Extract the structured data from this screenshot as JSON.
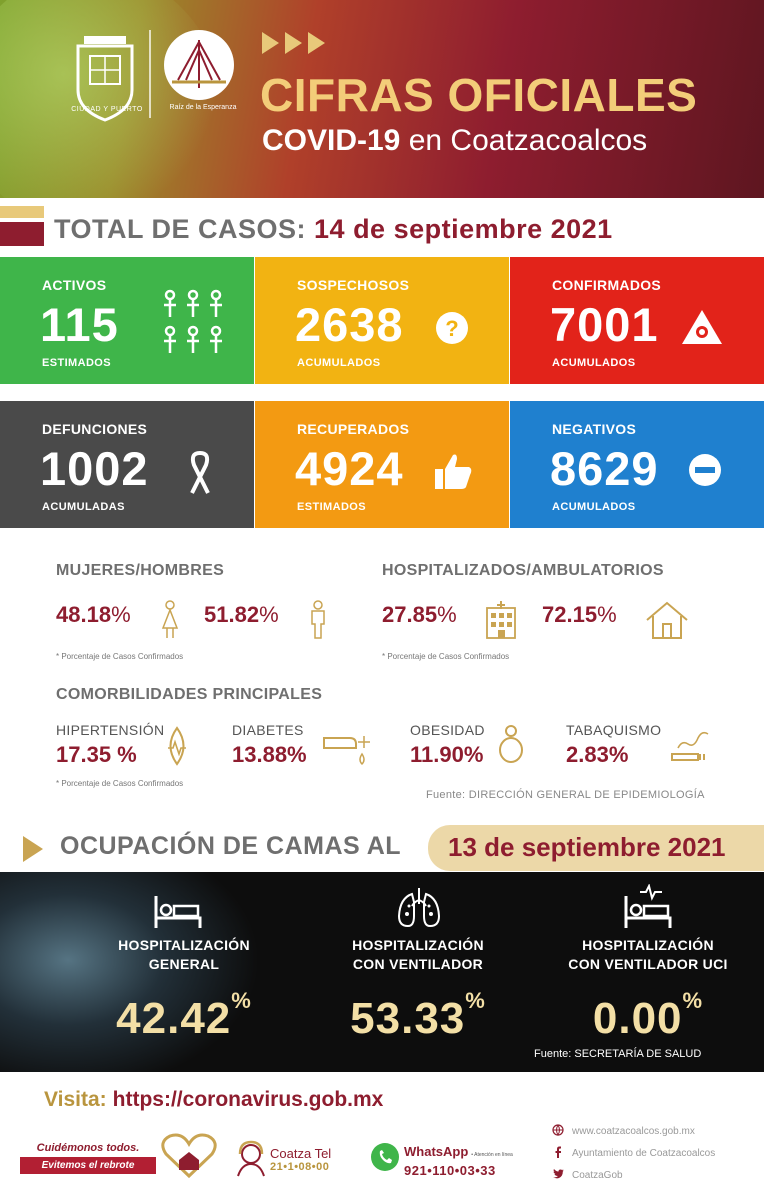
{
  "header": {
    "logo_caption_a": "CIUDAD Y PUERTO",
    "logo_caption_b": "Raíz de la Esperanza",
    "title": "CIFRAS OFICIALES",
    "subtitle_bold": "COVID-19",
    "subtitle_rest": " en Coatzacoalcos"
  },
  "total": {
    "label": "TOTAL DE CASOS:",
    "date": "14 de septiembre 2021"
  },
  "tiles": [
    {
      "label": "ACTIVOS",
      "value": "115",
      "sub": "ESTIMADOS",
      "color": "#3fb54a",
      "icon": "people-group-icon"
    },
    {
      "label": "SOSPECHOSOS",
      "value": "2638",
      "sub": "ACUMULADOS",
      "color": "#f2b312",
      "icon": "question-icon"
    },
    {
      "label": "CONFIRMADOS",
      "value": "7001",
      "sub": "ACUMULADOS",
      "color": "#e2231a",
      "icon": "virus-warning-icon"
    },
    {
      "label": "DEFUNCIONES",
      "value": "1002",
      "sub": "ACUMULADAS",
      "color": "#4a4a4a",
      "icon": "ribbon-icon"
    },
    {
      "label": "RECUPERADOS",
      "value": "4924",
      "sub": "ESTIMADOS",
      "color": "#f39a12",
      "icon": "thumbs-up-icon"
    },
    {
      "label": "NEGATIVOS",
      "value": "8629",
      "sub": "ACUMULADOS",
      "color": "#1f80cf",
      "icon": "minus-circle-icon"
    }
  ],
  "gender": {
    "title": "MUJERES/HOMBRES",
    "women_pct": "48.18",
    "men_pct": "51.82",
    "pct_symbol": "%",
    "note": "* Porcentaje de Casos Confirmados"
  },
  "hospital_split": {
    "title": "HOSPITALIZADOS/AMBULATORIOS",
    "hosp_pct": "27.85",
    "amb_pct": "72.15",
    "note": "* Porcentaje de Casos Confirmados"
  },
  "comorbidities": {
    "title": "COMORBILIDADES PRINCIPALES",
    "items": [
      {
        "label": "HIPERTENSIÓN",
        "value": "17.35 %"
      },
      {
        "label": "DIABETES",
        "value": "13.88%"
      },
      {
        "label": "OBESIDAD",
        "value": "11.90%"
      },
      {
        "label": "TABAQUISMO",
        "value": "2.83%"
      }
    ],
    "note": "* Porcentaje de Casos Confirmados",
    "source": "Fuente: DIRECCIÓN GENERAL DE EPIDEMIOLOGÍA"
  },
  "occupancy": {
    "title": "OCUPACIÓN DE CAMAS AL",
    "date": "13 de septiembre 2021",
    "items": [
      {
        "line1": "HOSPITALIZACIÓN",
        "line2": "GENERAL",
        "value": "42.42"
      },
      {
        "line1": "HOSPITALIZACIÓN",
        "line2": "CON VENTILADOR",
        "value": "53.33"
      },
      {
        "line1": "HOSPITALIZACIÓN",
        "line2": "CON VENTILADOR UCI",
        "value": "0.00"
      }
    ],
    "pct_symbol": "%",
    "source": "Fuente: SECRETARÍA DE SALUD"
  },
  "footer": {
    "visit_label": "Visita:",
    "visit_url": "https://coronavirus.gob.mx",
    "slogan_1": "Cuidémonos todos.",
    "slogan_2": "Evitemos el rebrote",
    "coatza_tel_label": "Coatza Tel",
    "coatza_tel_number": "21•1•08•00",
    "whatsapp_label": "WhatsApp",
    "whatsapp_note": "• Atención en línea",
    "whatsapp_number": "921•110•03•33",
    "website": "www.coatzacoalcos.gob.mx",
    "facebook": "Ayuntamiento de Coatzacoalcos",
    "twitter": "CoatzaGob"
  }
}
